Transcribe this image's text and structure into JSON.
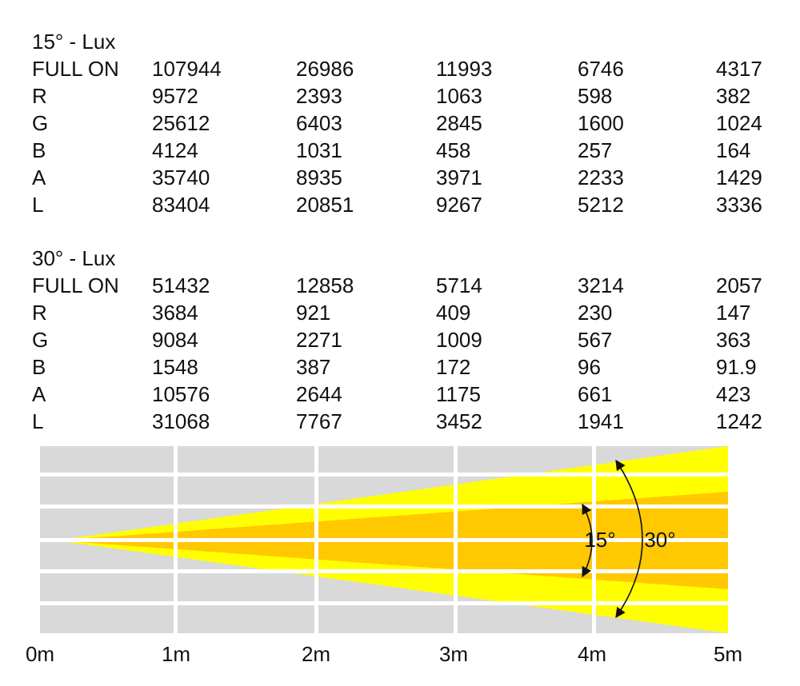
{
  "tables": [
    {
      "title": "15° - Lux",
      "rows": [
        {
          "label": "FULL ON",
          "values": [
            107944,
            26986,
            11993,
            6746,
            4317
          ]
        },
        {
          "label": "R",
          "values": [
            9572,
            2393,
            1063,
            598,
            382
          ]
        },
        {
          "label": "G",
          "values": [
            25612,
            6403,
            2845,
            1600,
            1024
          ]
        },
        {
          "label": "B",
          "values": [
            4124,
            1031,
            458,
            257,
            164
          ]
        },
        {
          "label": "A",
          "values": [
            35740,
            8935,
            3971,
            2233,
            1429
          ]
        },
        {
          "label": "L",
          "values": [
            83404,
            20851,
            9267,
            5212,
            3336
          ]
        }
      ]
    },
    {
      "title": "30° - Lux",
      "rows": [
        {
          "label": "FULL ON",
          "values": [
            51432,
            12858,
            5714,
            3214,
            2057
          ]
        },
        {
          "label": "R",
          "values": [
            3684,
            921,
            409,
            230,
            147
          ]
        },
        {
          "label": "G",
          "values": [
            9084,
            2271,
            1009,
            567,
            363
          ]
        },
        {
          "label": "B",
          "values": [
            1548,
            387,
            172,
            96,
            91.9
          ]
        },
        {
          "label": "A",
          "values": [
            10576,
            2644,
            1175,
            661,
            423
          ]
        },
        {
          "label": "L",
          "values": [
            31068,
            7767,
            3452,
            1941,
            1242
          ]
        }
      ]
    }
  ],
  "diagram": {
    "angles": [
      "15°",
      "30°"
    ],
    "distances": [
      "0m",
      "1m",
      "2m",
      "3m",
      "4m",
      "5m"
    ]
  }
}
